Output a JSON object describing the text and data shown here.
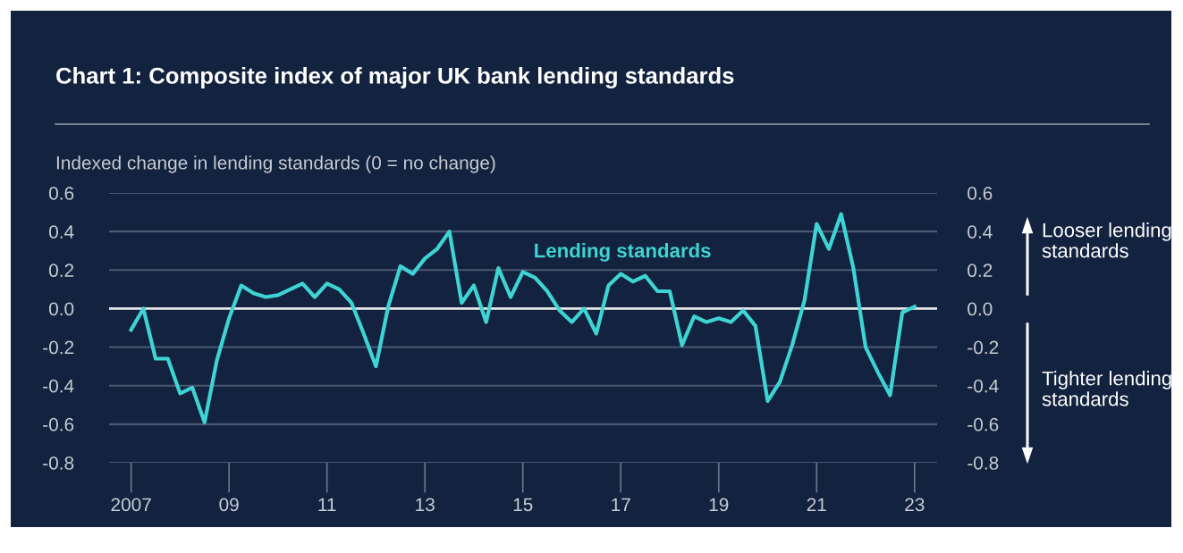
{
  "chart_data": {
    "type": "line",
    "title": "Chart 1: Composite index of major UK bank lending standards",
    "ylabel": "Indexed change in lending standards (0 = no change)",
    "annotations": [
      "Looser lending standards",
      "Tighter lending standards"
    ],
    "x": [
      2007.0,
      2007.25,
      2007.5,
      2007.75,
      2008.0,
      2008.25,
      2008.5,
      2008.75,
      2009.0,
      2009.25,
      2009.5,
      2009.75,
      2010.0,
      2010.25,
      2010.5,
      2010.75,
      2011.0,
      2011.25,
      2011.5,
      2011.75,
      2012.0,
      2012.25,
      2012.5,
      2012.75,
      2013.0,
      2013.25,
      2013.5,
      2013.75,
      2014.0,
      2014.25,
      2014.5,
      2014.75,
      2015.0,
      2015.25,
      2015.5,
      2015.75,
      2016.0,
      2016.25,
      2016.5,
      2016.75,
      2017.0,
      2017.25,
      2017.5,
      2017.75,
      2018.0,
      2018.25,
      2018.5,
      2018.75,
      2019.0,
      2019.25,
      2019.5,
      2019.75,
      2020.0,
      2020.25,
      2020.5,
      2020.75,
      2021.0,
      2021.25,
      2021.5,
      2021.75,
      2022.0,
      2022.25,
      2022.5,
      2022.75,
      2023.0
    ],
    "series": [
      {
        "name": "Lending standards",
        "color": "#3fd4d4",
        "values": [
          -0.11,
          0.0,
          -0.26,
          -0.26,
          -0.44,
          -0.41,
          -0.59,
          -0.27,
          -0.05,
          0.12,
          0.08,
          0.06,
          0.07,
          0.1,
          0.13,
          0.06,
          0.13,
          0.1,
          0.03,
          -0.13,
          -0.3,
          0.01,
          0.22,
          0.18,
          0.26,
          0.31,
          0.4,
          0.03,
          0.12,
          -0.07,
          0.21,
          0.06,
          0.19,
          0.16,
          0.09,
          -0.01,
          -0.07,
          0.0,
          -0.13,
          0.12,
          0.18,
          0.14,
          0.17,
          0.09,
          0.09,
          -0.19,
          -0.04,
          -0.07,
          -0.05,
          -0.07,
          -0.01,
          -0.09,
          -0.48,
          -0.38,
          -0.19,
          0.04,
          0.44,
          0.31,
          0.49,
          0.21,
          -0.2,
          -0.33,
          -0.45,
          -0.02,
          0.01
        ]
      }
    ],
    "xlim": [
      2006.55,
      2023.46
    ],
    "xticks": [
      {
        "value": 2007,
        "label": "2007"
      },
      {
        "value": 2009,
        "label": "09"
      },
      {
        "value": 2011,
        "label": "11"
      },
      {
        "value": 2013,
        "label": "13"
      },
      {
        "value": 2015,
        "label": "15"
      },
      {
        "value": 2017,
        "label": "17"
      },
      {
        "value": 2019,
        "label": "19"
      },
      {
        "value": 2021,
        "label": "21"
      },
      {
        "value": 2023,
        "label": "23"
      }
    ],
    "ylim": [
      -0.8,
      0.6
    ],
    "yticks": [
      {
        "value": -0.8,
        "label": "-0.8"
      },
      {
        "value": -0.6,
        "label": "-0.6"
      },
      {
        "value": -0.4,
        "label": "-0.4"
      },
      {
        "value": -0.2,
        "label": "-0.2"
      },
      {
        "value": 0,
        "label": "0.0"
      },
      {
        "value": 0.2,
        "label": "0.2"
      },
      {
        "value": 0.4,
        "label": "0.4"
      },
      {
        "value": 0.6,
        "label": "0.6"
      }
    ],
    "y2lim": [
      -0.8,
      0.6
    ],
    "y2ticks": [
      {
        "value": -0.8,
        "label": "-0.8"
      },
      {
        "value": -0.6,
        "label": "-0.6"
      },
      {
        "value": -0.4,
        "label": "-0.4"
      },
      {
        "value": -0.2,
        "label": "-0.2"
      },
      {
        "value": 0,
        "label": "0.0"
      },
      {
        "value": 0.2,
        "label": "0.2"
      },
      {
        "value": 0.4,
        "label": "0.4"
      },
      {
        "value": 0.6,
        "label": "0.6"
      }
    ],
    "ref_lines": [
      {
        "axis": "y",
        "value": 0,
        "color": "#e6e6e6"
      }
    ],
    "grid": "y",
    "legend": false,
    "marker": "none",
    "line_style": "solid"
  }
}
